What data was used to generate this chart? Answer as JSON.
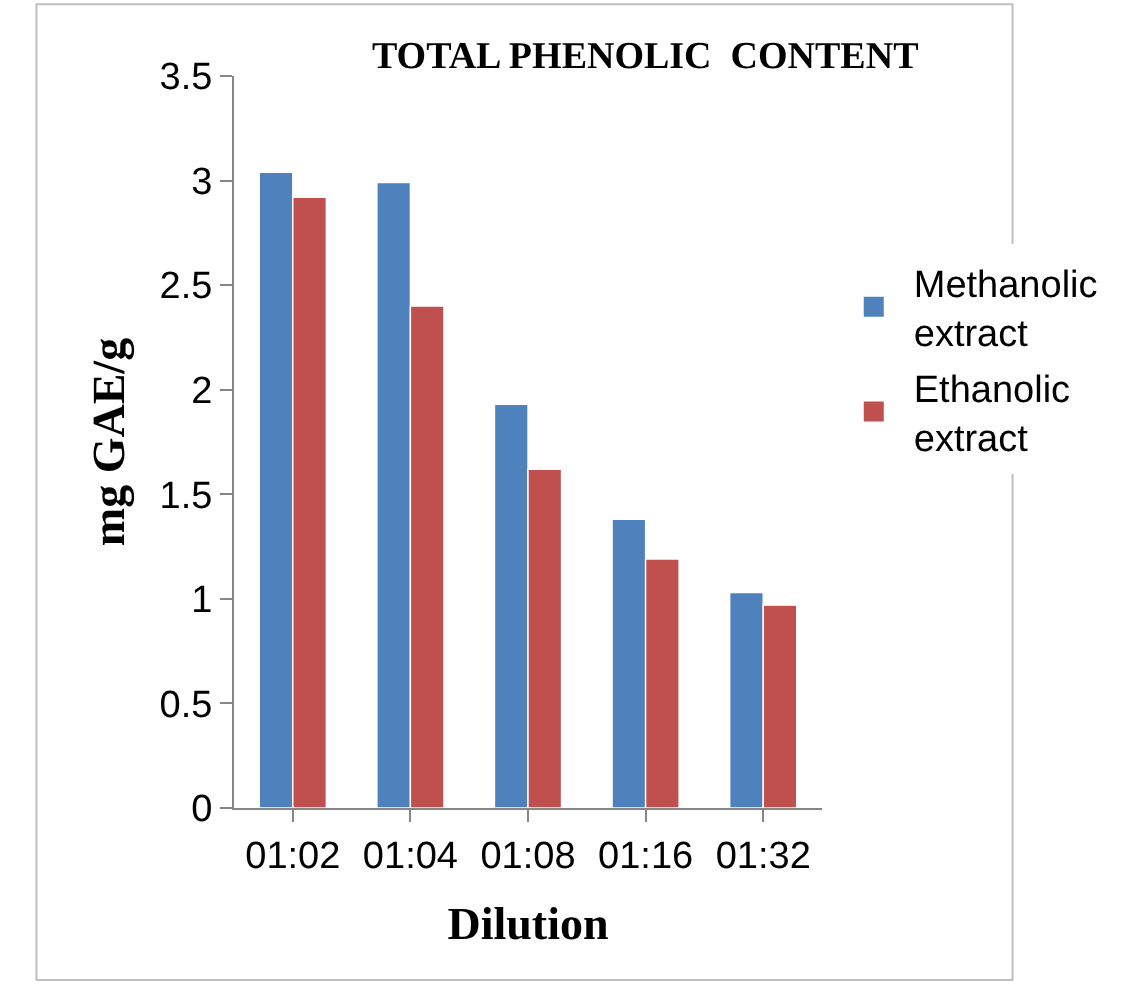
{
  "chart_data": {
    "type": "bar",
    "title": "TOTAL PHENOLIC  CONTENT",
    "xlabel": "Dilution",
    "ylabel": "mg GAE/g",
    "categories": [
      "01:02",
      "01:04",
      "01:08",
      "01:16",
      "01:32"
    ],
    "series": [
      {
        "name": "Methanolic extract",
        "color": "#4f81bd",
        "values": [
          3.04,
          2.99,
          1.93,
          1.38,
          1.03
        ]
      },
      {
        "name": "Ethanolic extract",
        "color": "#c0504d",
        "values": [
          2.92,
          2.4,
          1.62,
          1.19,
          0.97
        ]
      }
    ],
    "ylim": [
      0,
      3.5
    ],
    "yticks": [
      0,
      {
        "value": 0.5,
        "label": "0.5"
      },
      1,
      {
        "value": 1.5,
        "label": "1.5"
      },
      2,
      {
        "value": 2.5,
        "label": "2.5"
      },
      3,
      {
        "value": 3.5,
        "label": "3.5"
      }
    ],
    "legend": "right"
  }
}
